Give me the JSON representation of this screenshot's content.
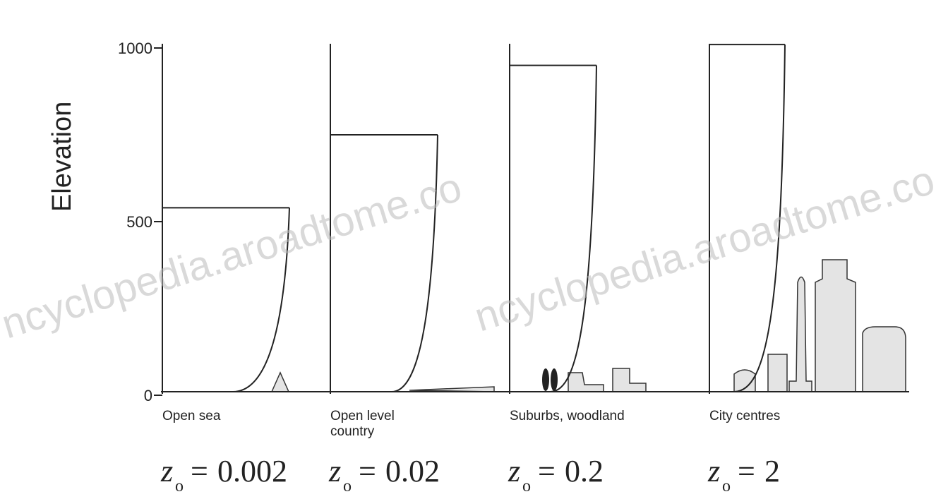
{
  "y_axis": {
    "label": "Elevation",
    "ticks": [
      0,
      500,
      1000
    ],
    "lim": [
      0,
      1000
    ]
  },
  "roughness_symbol": {
    "main": "z",
    "sub": "o",
    "eq": "="
  },
  "panels": [
    {
      "label": [
        "Open sea"
      ],
      "z0": 0.002,
      "height": 540
    },
    {
      "label": [
        "Open level",
        "country"
      ],
      "z0": 0.02,
      "height": 750
    },
    {
      "label": [
        "Suburbs, woodland"
      ],
      "z0": 0.2,
      "height": 950
    },
    {
      "label": [
        "City centres"
      ],
      "z0": 2,
      "height": 1010
    }
  ],
  "watermark": "ncyclopedia.aroadtome.co"
}
